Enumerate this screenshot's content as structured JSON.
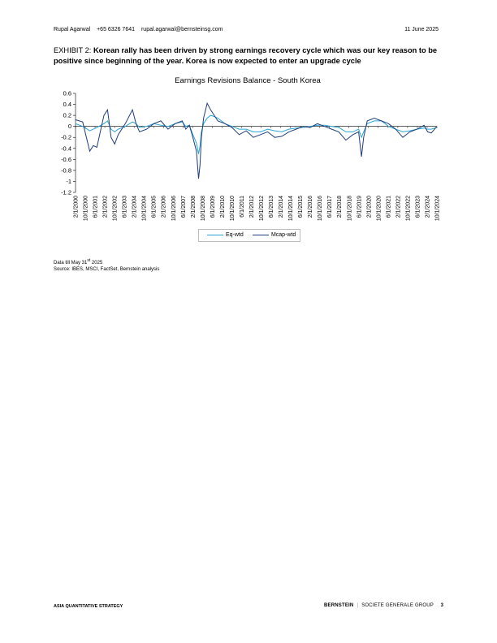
{
  "header": {
    "author": "Rupal Agarwal",
    "phone": "+65 6326 7641",
    "email": "rupal.agarwal@bernsteinsg.com",
    "date": "11 June 2025"
  },
  "exhibit": {
    "label": "EXHIBIT 2:",
    "caption": "Korean rally has been driven by strong earnings recovery cycle which was our key reason to be positive since beginning of the year. Korea is now expected to enter an upgrade cycle"
  },
  "notes": {
    "data_prefix": "Data till May 31",
    "data_sup": "st",
    "data_suffix": " 2025",
    "source": "Source: IBES, MSCI, FactSet, Bernstein analysis"
  },
  "footer": {
    "left": "ASIA QUANTITATIVE STRATEGY",
    "brand1": "BERNSTEIN",
    "brand2": "SOCIETE GENERALE GROUP",
    "page": "3"
  },
  "colors": {
    "eq": "#2aa6d6",
    "mcap": "#1f3e7a"
  },
  "chart_data": {
    "type": "line",
    "title": "Earnings Revisions Balance - South Korea",
    "xlabel": "",
    "ylabel": "",
    "ylim": [
      -1.2,
      0.6
    ],
    "yticks": [
      "0.6",
      "0.4",
      "0.2",
      "0",
      "-0.2",
      "-0.4",
      "-0.6",
      "-0.8",
      "-1",
      "-1.2"
    ],
    "xticks": [
      "2/1/2000",
      "10/1/2000",
      "6/1/2001",
      "2/1/2002",
      "10/1/2002",
      "6/1/2003",
      "2/1/2004",
      "10/1/2004",
      "6/1/2005",
      "2/1/2006",
      "10/1/2006",
      "6/1/2007",
      "2/1/2008",
      "10/1/2008",
      "6/1/2009",
      "2/1/2010",
      "10/1/2010",
      "6/1/2011",
      "2/1/2012",
      "10/1/2012",
      "6/1/2013",
      "2/1/2014",
      "10/1/2014",
      "6/1/2015",
      "2/1/2016",
      "10/1/2016",
      "6/1/2017",
      "2/1/2018",
      "10/1/2018",
      "6/1/2019",
      "2/1/2020",
      "10/1/2020",
      "6/1/2021",
      "2/1/2022",
      "10/1/2022",
      "6/1/2023",
      "2/1/2024",
      "10/1/2024"
    ],
    "legend": "bottom",
    "grid": false,
    "x": [
      2000.0,
      2000.5,
      2001.0,
      2001.25,
      2001.5,
      2002.0,
      2002.25,
      2002.5,
      2002.75,
      2003.0,
      2003.5,
      2004.0,
      2004.25,
      2004.5,
      2005.0,
      2005.5,
      2006.0,
      2006.5,
      2007.0,
      2007.5,
      2007.75,
      2008.0,
      2008.25,
      2008.5,
      2008.65,
      2008.75,
      2008.85,
      2009.0,
      2009.25,
      2009.5,
      2009.75,
      2010.0,
      2010.5,
      2011.0,
      2011.5,
      2012.0,
      2012.5,
      2013.0,
      2013.5,
      2014.0,
      2014.5,
      2015.0,
      2015.5,
      2016.0,
      2016.5,
      2017.0,
      2017.5,
      2018.0,
      2018.5,
      2019.0,
      2019.5,
      2019.9,
      2020.1,
      2020.25,
      2020.5,
      2021.0,
      2021.5,
      2022.0,
      2022.5,
      2023.0,
      2023.5,
      2024.0,
      2024.5,
      2024.75,
      2025.0,
      2025.4
    ],
    "series": [
      {
        "name": "Eq-wtd",
        "values": [
          0.05,
          0.0,
          -0.08,
          -0.05,
          -0.02,
          0.05,
          0.1,
          -0.05,
          -0.1,
          -0.05,
          0.0,
          0.08,
          0.05,
          -0.02,
          0.0,
          0.05,
          0.02,
          0.0,
          0.05,
          0.08,
          0.0,
          0.02,
          -0.15,
          -0.3,
          -0.5,
          -0.35,
          -0.1,
          0.05,
          0.15,
          0.2,
          0.18,
          0.15,
          0.05,
          0.0,
          -0.05,
          -0.05,
          -0.1,
          -0.1,
          -0.05,
          -0.08,
          -0.1,
          -0.05,
          -0.03,
          -0.02,
          0.0,
          0.02,
          0.02,
          0.0,
          -0.02,
          -0.1,
          -0.1,
          -0.05,
          -0.2,
          -0.1,
          0.05,
          0.1,
          0.1,
          0.0,
          -0.05,
          -0.1,
          -0.08,
          -0.05,
          -0.03,
          -0.05,
          -0.05,
          -0.02
        ]
      },
      {
        "name": "Mcap-wtd",
        "values": [
          0.12,
          0.08,
          -0.45,
          -0.35,
          -0.38,
          0.2,
          0.3,
          -0.2,
          -0.32,
          -0.15,
          0.05,
          0.3,
          0.05,
          -0.1,
          -0.05,
          0.05,
          0.1,
          -0.05,
          0.05,
          0.1,
          -0.05,
          0.02,
          -0.2,
          -0.45,
          -0.95,
          -0.7,
          -0.2,
          0.15,
          0.42,
          0.3,
          0.2,
          0.1,
          0.05,
          -0.02,
          -0.15,
          -0.08,
          -0.2,
          -0.15,
          -0.1,
          -0.2,
          -0.18,
          -0.1,
          -0.05,
          0.0,
          -0.02,
          0.05,
          0.0,
          -0.05,
          -0.1,
          -0.25,
          -0.15,
          -0.1,
          -0.55,
          -0.2,
          0.1,
          0.15,
          0.1,
          0.05,
          -0.05,
          -0.2,
          -0.1,
          -0.05,
          0.02,
          -0.1,
          -0.12,
          0.0
        ]
      }
    ]
  }
}
